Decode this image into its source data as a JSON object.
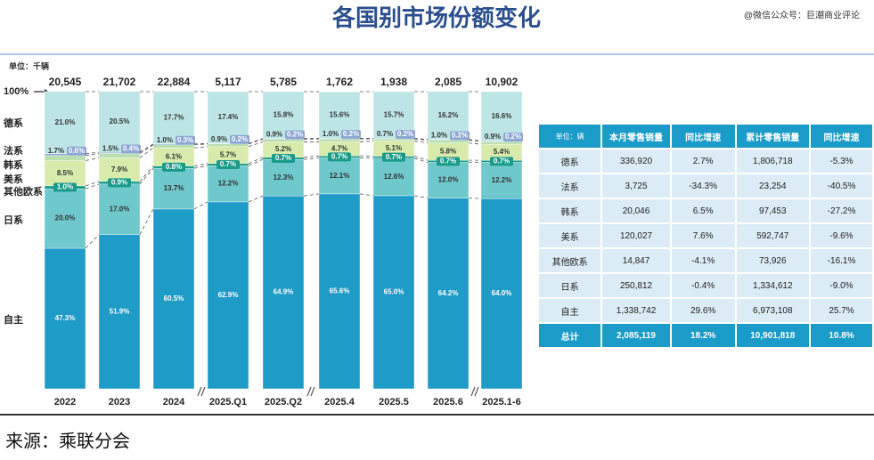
{
  "title": "各国别市场份额变化",
  "watermark": "@微信公众号：巨潮商业评论",
  "source": "来源：乘联分会",
  "chart_data": {
    "type": "stacked_bar",
    "unit": "单位：千辆",
    "categories": [
      "2022",
      "2023",
      "2024",
      "2025.Q1",
      "2025.Q2",
      "2025.4",
      "2025.5",
      "2025.6",
      "2025.1-6"
    ],
    "totals": {
      "values": [
        20545,
        21702,
        22884,
        5117,
        5785,
        1762,
        1938,
        2085,
        10902
      ],
      "value_labels": [
        "20,545",
        "21,702",
        "22,884",
        "5,117",
        "5,785",
        "1,762",
        "1,938",
        "2,085",
        "10,902"
      ]
    },
    "ylim": [
      0,
      100
    ],
    "yticks": [
      {
        "value": 100,
        "label": "100%"
      }
    ],
    "series": [
      {
        "name": "自主",
        "color": "#1e9bc6",
        "values": [
          47.3,
          51.9,
          60.5,
          62.9,
          64.9,
          65.6,
          65.0,
          64.2,
          64.0
        ],
        "value_labels": [
          "47.3%",
          "51.9%",
          "60.5%",
          "62.9%",
          "64.9%",
          "65.6%",
          "65.0%",
          "64.2%",
          "64.0%"
        ]
      },
      {
        "name": "日系",
        "color": "#6fc8cc",
        "values": [
          20.0,
          17.0,
          13.7,
          12.2,
          12.3,
          12.1,
          12.6,
          12.0,
          12.2
        ],
        "value_labels": [
          "20.0%",
          "17.0%",
          "13.7%",
          "12.2%",
          "12.3%",
          "12.1%",
          "12.6%",
          "12.0%",
          "12.2%"
        ]
      },
      {
        "name": "其他欧系",
        "color": "#1a9a88",
        "values": [
          1.0,
          0.9,
          0.8,
          0.7,
          0.7,
          0.7,
          0.7,
          0.7,
          0.7
        ],
        "value_labels": [
          "1.0%",
          "0.9%",
          "0.8%",
          "0.7%",
          "0.7%",
          "0.7%",
          "0.7%",
          "0.7%",
          "0.7%"
        ]
      },
      {
        "name": "美系",
        "color": "#d8ebad",
        "values": [
          8.5,
          7.9,
          6.1,
          5.7,
          5.2,
          4.7,
          5.1,
          5.8,
          5.4
        ],
        "value_labels": [
          "8.5%",
          "7.9%",
          "6.1%",
          "5.7%",
          "5.2%",
          "4.7%",
          "5.1%",
          "5.8%",
          "5.4%"
        ]
      },
      {
        "name": "韩系",
        "color": "#b9dfb0",
        "values": [
          1.7,
          1.5,
          1.0,
          0.9,
          0.9,
          1.0,
          0.7,
          1.0,
          0.9
        ],
        "value_labels": [
          "1.7%",
          "1.5%",
          "1.0%",
          "0.9%",
          "0.9%",
          "1.0%",
          "0.7%",
          "1.0%",
          "0.9%"
        ]
      },
      {
        "name": "法系",
        "color": "#8ea6d2",
        "values": [
          0.6,
          0.4,
          0.3,
          0.2,
          0.2,
          0.2,
          0.2,
          0.2,
          0.2
        ],
        "value_labels": [
          "0.6%",
          "0.4%",
          "0.3%",
          "0.2%",
          "0.2%",
          "0.2%",
          "0.2%",
          "0.2%",
          "0.2%"
        ]
      },
      {
        "name": "德系",
        "color": "#bde5e5",
        "values": [
          21.0,
          20.5,
          17.7,
          17.4,
          15.8,
          15.6,
          15.7,
          16.2,
          16.6
        ],
        "value_labels": [
          "21.0%",
          "20.5%",
          "17.7%",
          "17.4%",
          "15.8%",
          "15.6%",
          "15.7%",
          "16.2%",
          "16.6%"
        ]
      }
    ]
  },
  "table": {
    "header": [
      "单位：辆",
      "本月零售销量",
      "同比增速",
      "累计零售销量",
      "同比增速"
    ],
    "rows": [
      [
        "德系",
        "336,920",
        "2.7%",
        "1,806,718",
        "-5.3%"
      ],
      [
        "法系",
        "3,725",
        "-34.3%",
        "23,254",
        "-40.5%"
      ],
      [
        "韩系",
        "20,046",
        "6.5%",
        "97,453",
        "-27.2%"
      ],
      [
        "美系",
        "120,027",
        "7.6%",
        "592,747",
        "-9.6%"
      ],
      [
        "其他欧系",
        "14,847",
        "-4.1%",
        "73,926",
        "-16.1%"
      ],
      [
        "日系",
        "250,812",
        "-0.4%",
        "1,334,612",
        "-9.0%"
      ],
      [
        "自主",
        "1,338,742",
        "29.6%",
        "6,973,108",
        "25.7%"
      ],
      [
        "总计",
        "2,085,119",
        "18.2%",
        "10,901,818",
        "10.8%"
      ]
    ]
  }
}
